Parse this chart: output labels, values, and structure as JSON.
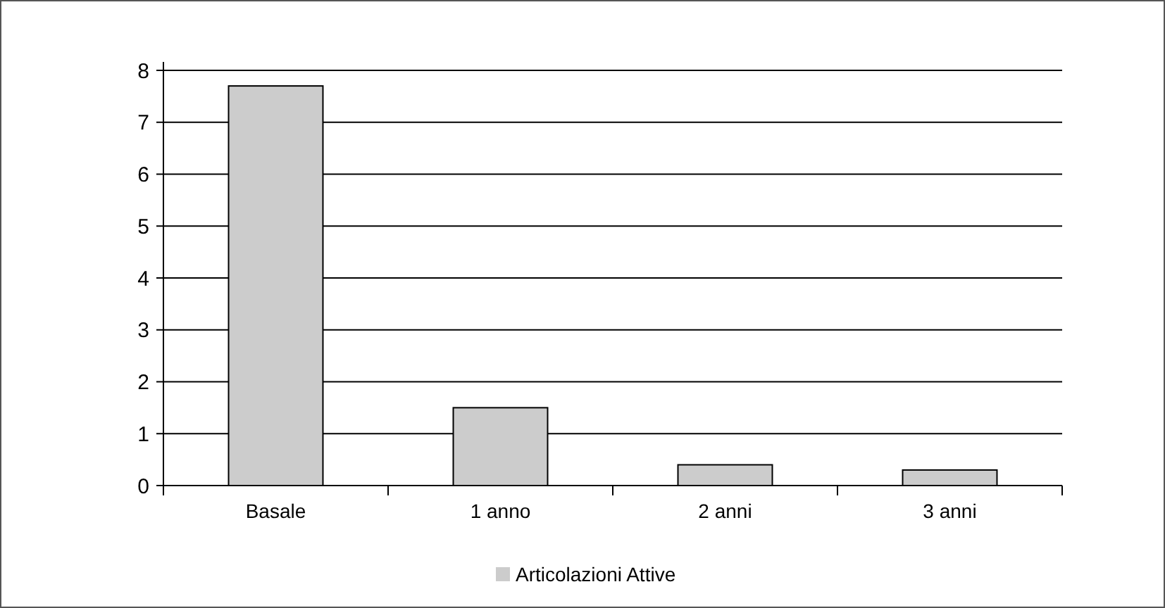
{
  "chart_data": {
    "type": "bar",
    "categories": [
      "Basale",
      "1 anno",
      "2 anni",
      "3 anni"
    ],
    "series": [
      {
        "name": "Articolazioni Attive",
        "color": "#cccccc",
        "values": [
          7.7,
          1.5,
          0.4,
          0.3
        ]
      }
    ],
    "ylim": [
      0,
      8
    ],
    "yticks": [
      0,
      1,
      2,
      3,
      4,
      5,
      6,
      7,
      8
    ],
    "grid": "y",
    "legend": "bottom"
  }
}
